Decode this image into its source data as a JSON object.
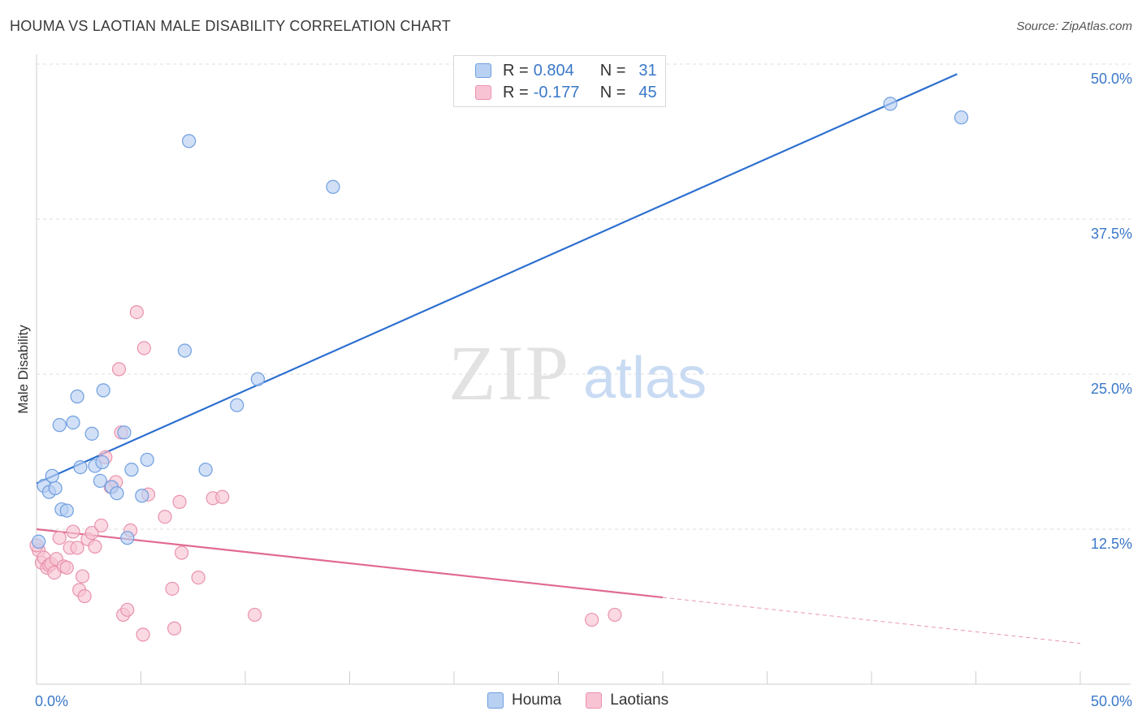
{
  "title": "HOUMA VS LAOTIAN MALE DISABILITY CORRELATION CHART",
  "source": "Source: ZipAtlas.com",
  "watermark": {
    "zip": "ZIP",
    "atlas": "atlas"
  },
  "legend_top": [
    {
      "r_label": "R =",
      "r_value": "0.804",
      "n_label": "N =",
      "n_value": "31"
    },
    {
      "r_label": "R =",
      "r_value": "-0.177",
      "n_label": "N =",
      "n_value": "45"
    }
  ],
  "colors": {
    "houma_fill": "#b8d0f2",
    "houma_stroke": "#6f9fe0",
    "houma_line": "#2d6fd0",
    "laotian_fill": "#f8c4d3",
    "laotian_stroke": "#e992ad",
    "laotian_line": "#e06a92",
    "axis_label": "#3a78c9"
  },
  "chart_data": {
    "type": "scatter",
    "title": "HOUMA VS LAOTIAN MALE DISABILITY CORRELATION CHART",
    "xlabel": "",
    "ylabel": "Male Disability",
    "xlim": [
      0,
      50
    ],
    "ylim": [
      0,
      50
    ],
    "x_tick_labels": [
      "0.0%",
      "50.0%"
    ],
    "y_ticks": [
      12.5,
      25.0,
      37.5,
      50.0
    ],
    "y_tick_labels": [
      "12.5%",
      "25.0%",
      "37.5%",
      "50.0%"
    ],
    "grid": true,
    "series": [
      {
        "name": "Houma",
        "r": 0.804,
        "n": 31,
        "trend": {
          "x": [
            0,
            44.1
          ],
          "y": [
            16.2,
            49.2
          ],
          "dashed_to": null
        },
        "points": [
          [
            0.1,
            11.5
          ],
          [
            0.35,
            16.0
          ],
          [
            0.6,
            15.5
          ],
          [
            0.75,
            16.8
          ],
          [
            0.9,
            15.8
          ],
          [
            1.1,
            20.9
          ],
          [
            1.2,
            14.1
          ],
          [
            1.45,
            14.0
          ],
          [
            1.75,
            21.1
          ],
          [
            1.95,
            23.2
          ],
          [
            2.1,
            17.5
          ],
          [
            2.65,
            20.2
          ],
          [
            2.8,
            17.6
          ],
          [
            3.05,
            16.4
          ],
          [
            3.15,
            17.9
          ],
          [
            3.2,
            23.7
          ],
          [
            3.6,
            15.9
          ],
          [
            3.85,
            15.4
          ],
          [
            4.2,
            20.3
          ],
          [
            4.35,
            11.8
          ],
          [
            4.55,
            17.3
          ],
          [
            5.05,
            15.2
          ],
          [
            5.3,
            18.1
          ],
          [
            7.1,
            26.9
          ],
          [
            7.3,
            43.8
          ],
          [
            8.1,
            17.3
          ],
          [
            9.6,
            22.5
          ],
          [
            10.6,
            24.6
          ],
          [
            14.2,
            40.1
          ],
          [
            40.9,
            46.8
          ],
          [
            44.3,
            45.7
          ]
        ]
      },
      {
        "name": "Laotians",
        "r": -0.177,
        "n": 45,
        "trend": {
          "x": [
            0,
            30
          ],
          "y": [
            12.5,
            7.0
          ],
          "dashed_to": [
            50,
            3.3
          ]
        },
        "points": [
          [
            0.1,
            10.8
          ],
          [
            0.25,
            9.8
          ],
          [
            0.35,
            10.2
          ],
          [
            0.5,
            9.4
          ],
          [
            0.6,
            9.6
          ],
          [
            0.7,
            9.7
          ],
          [
            0.85,
            9.0
          ],
          [
            0.95,
            10.1
          ],
          [
            1.1,
            11.8
          ],
          [
            1.3,
            9.5
          ],
          [
            1.45,
            9.4
          ],
          [
            1.6,
            11.0
          ],
          [
            1.75,
            12.3
          ],
          [
            1.95,
            11.0
          ],
          [
            2.05,
            7.6
          ],
          [
            2.2,
            8.7
          ],
          [
            2.3,
            7.1
          ],
          [
            2.45,
            11.7
          ],
          [
            2.65,
            12.2
          ],
          [
            2.8,
            11.1
          ],
          [
            3.1,
            12.8
          ],
          [
            3.3,
            18.3
          ],
          [
            3.55,
            15.9
          ],
          [
            3.8,
            16.3
          ],
          [
            3.95,
            25.4
          ],
          [
            4.05,
            20.3
          ],
          [
            4.15,
            5.6
          ],
          [
            4.35,
            6.0
          ],
          [
            4.5,
            12.4
          ],
          [
            4.8,
            30.0
          ],
          [
            5.1,
            4.0
          ],
          [
            5.15,
            27.1
          ],
          [
            5.35,
            15.3
          ],
          [
            6.15,
            13.5
          ],
          [
            6.5,
            7.7
          ],
          [
            6.6,
            4.5
          ],
          [
            6.85,
            14.7
          ],
          [
            6.95,
            10.6
          ],
          [
            7.75,
            8.6
          ],
          [
            8.45,
            15.0
          ],
          [
            8.9,
            15.1
          ],
          [
            10.45,
            5.6
          ],
          [
            26.6,
            5.2
          ],
          [
            27.7,
            5.6
          ],
          [
            0.0,
            11.2
          ]
        ]
      }
    ]
  },
  "legend_bottom": [
    "Houma",
    "Laotians"
  ]
}
